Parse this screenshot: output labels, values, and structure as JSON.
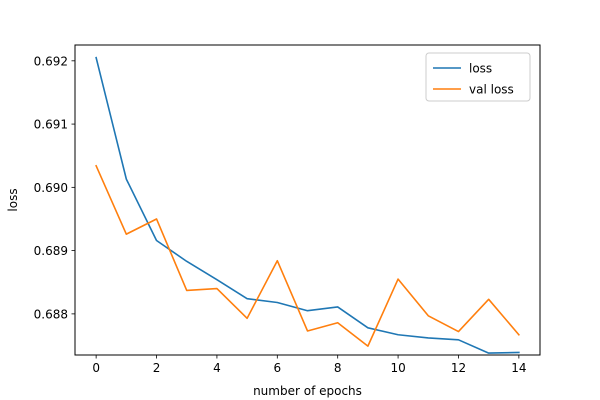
{
  "chart_data": {
    "type": "line",
    "xlabel": "number of epochs",
    "ylabel": "loss",
    "xlim": [
      -0.7,
      14.7
    ],
    "ylim": [
      0.68735,
      0.69225
    ],
    "x_ticks": [
      0,
      2,
      4,
      6,
      8,
      10,
      12,
      14
    ],
    "y_ticks": [
      0.688,
      0.689,
      0.69,
      0.691,
      0.692
    ],
    "legend_position": "top-right",
    "grid": false,
    "x": [
      0,
      1,
      2,
      3,
      4,
      5,
      6,
      7,
      8,
      9,
      10,
      11,
      12,
      13,
      14
    ],
    "series": [
      {
        "name": "loss",
        "color": "#1f77b4",
        "values": [
          0.69205,
          0.69013,
          0.68916,
          0.68883,
          0.68854,
          0.68824,
          0.68818,
          0.68805,
          0.68811,
          0.68778,
          0.68767,
          0.68762,
          0.68759,
          0.68738,
          0.68739
        ]
      },
      {
        "name": "val loss",
        "color": "#ff7f0e",
        "values": [
          0.69034,
          0.68926,
          0.6895,
          0.68837,
          0.6884,
          0.68793,
          0.68884,
          0.68773,
          0.68786,
          0.68749,
          0.68855,
          0.68797,
          0.68772,
          0.68823,
          0.68767
        ]
      }
    ]
  }
}
